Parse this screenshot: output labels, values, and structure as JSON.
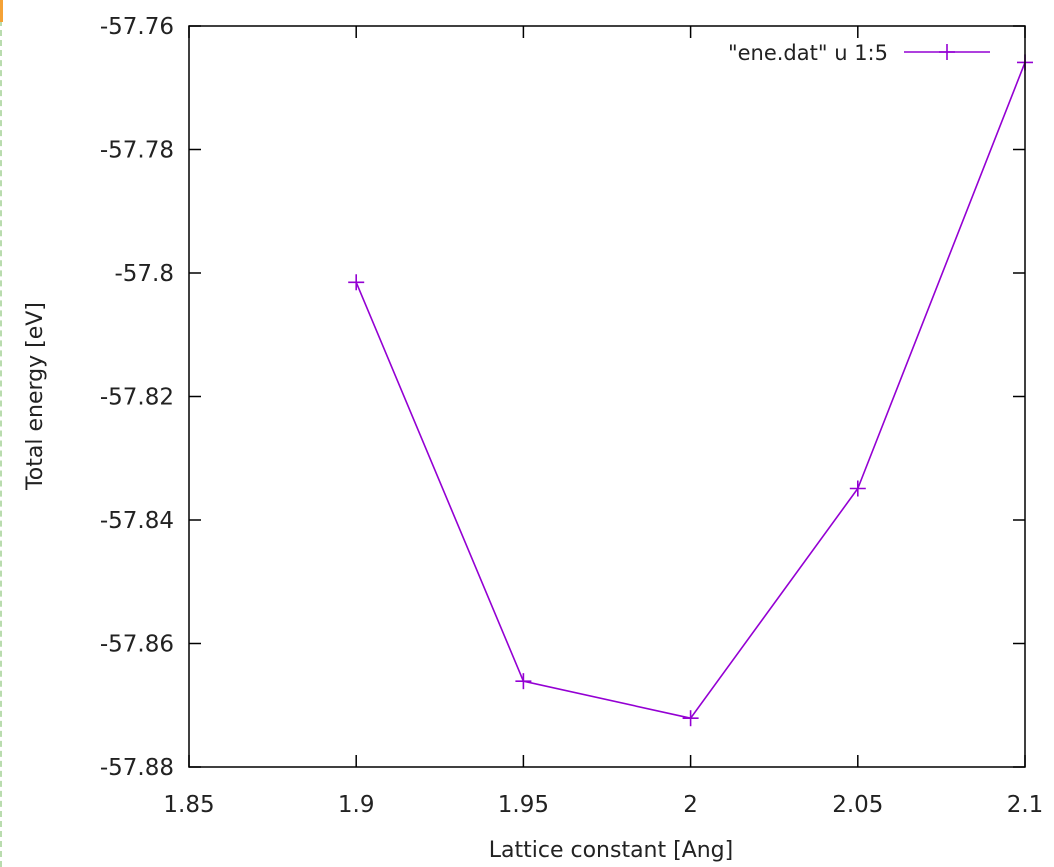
{
  "chart_data": {
    "type": "line",
    "title": "",
    "xlabel": "Lattice constant [Ang]",
    "ylabel": "Total energy [eV]",
    "xlim": [
      1.85,
      2.1
    ],
    "ylim": [
      -57.88,
      -57.76
    ],
    "x_ticks": [
      1.85,
      1.9,
      1.95,
      2.0,
      2.05,
      2.1
    ],
    "x_tick_labels": [
      "1.85",
      "1.9",
      "1.95",
      "2",
      "2.05",
      "2.1"
    ],
    "y_ticks": [
      -57.76,
      -57.78,
      -57.8,
      -57.82,
      -57.84,
      -57.86,
      -57.88
    ],
    "y_tick_labels": [
      "-57.76",
      "-57.78",
      "-57.8",
      "-57.82",
      "-57.84",
      "-57.86",
      "-57.88"
    ],
    "grid": false,
    "legend_position": "top-right",
    "series": [
      {
        "name": "\"ene.dat\" u 1:5",
        "color": "#9400d3",
        "marker": "plus",
        "x": [
          1.9,
          1.95,
          2.0,
          2.05,
          2.1
        ],
        "y": [
          -57.8015,
          -57.8661,
          -57.8721,
          -57.8349,
          -57.7659
        ]
      }
    ]
  }
}
